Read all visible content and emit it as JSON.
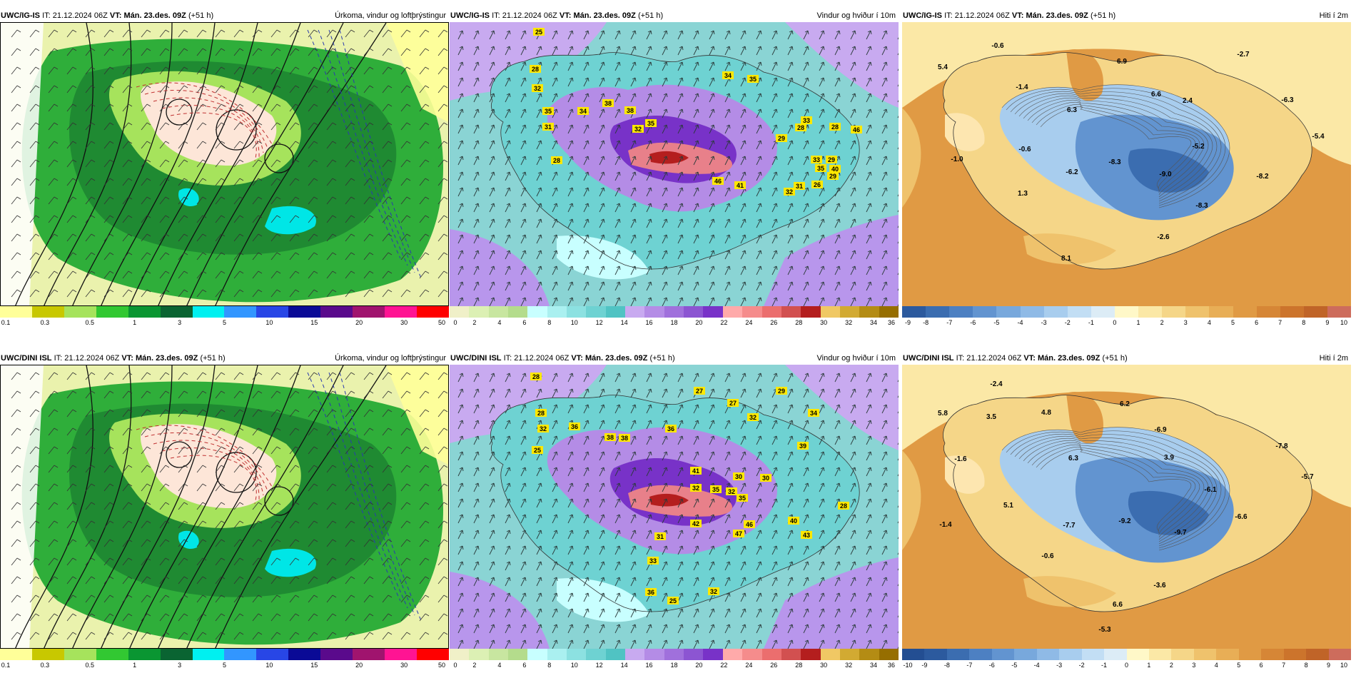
{
  "panels": [
    {
      "model": "UWC/IG-IS",
      "it_label": "IT:",
      "it_value": "21.12.2024 06Z",
      "vt_label": "VT:",
      "vt_value": "Mán. 23.des. 09Z",
      "lead": "(+51 h)",
      "product": "Úrkoma, vindur og loftþrýstingur",
      "kind": "precip",
      "labels": [],
      "colorbar": {
        "colors": [
          "#ffff99",
          "#c8c800",
          "#a6e35c",
          "#32c832",
          "#0a9632",
          "#0a6432",
          "#00f0f0",
          "#3296ff",
          "#2846e6",
          "#0a0a96",
          "#5a0a8c",
          "#a0146e",
          "#ff1493",
          "#ff0000"
        ],
        "ticks": [
          "0.1",
          "0.3",
          "0.5",
          "1",
          "3",
          "5",
          "10",
          "15",
          "20",
          "30",
          "50"
        ]
      }
    },
    {
      "model": "UWC/IG-IS",
      "it_label": "IT:",
      "it_value": "21.12.2024 06Z",
      "vt_label": "VT:",
      "vt_value": "Mán. 23.des. 09Z",
      "lead": "(+51 h)",
      "product": "Vindur og hviður í 10m",
      "kind": "wind",
      "labels": [
        "25",
        "28",
        "32",
        "35",
        "31",
        "28",
        "34",
        "38",
        "38",
        "35",
        "32",
        "34",
        "35",
        "33",
        "28",
        "29",
        "28",
        "33",
        "35",
        "29",
        "40",
        "46",
        "46",
        "41",
        "32",
        "31",
        "26",
        "29"
      ],
      "colorbar": {
        "colors": [
          "#f0f0c8",
          "#dcf0b4",
          "#c8e6a0",
          "#b4dc8c",
          "#c8ffff",
          "#aaf0f0",
          "#8ce1e1",
          "#6ed2d2",
          "#50c3c3",
          "#c8aaf0",
          "#b48ce6",
          "#a070dc",
          "#8c55d2",
          "#7832c8",
          "#ffaaaa",
          "#f58c8c",
          "#eb6e6e",
          "#d25050",
          "#b41e1e",
          "#f0c864",
          "#d2aa32",
          "#b48c14",
          "#966e00"
        ],
        "ticks": [
          "0",
          "2",
          "4",
          "6",
          "8",
          "10",
          "12",
          "14",
          "16",
          "18",
          "20",
          "22",
          "24",
          "26",
          "28",
          "30",
          "32",
          "34",
          "36"
        ]
      }
    },
    {
      "model": "UWC/IG-IS",
      "it_label": "IT:",
      "it_value": "21.12.2024 06Z",
      "vt_label": "VT:",
      "vt_value": "Mán. 23.des. 09Z",
      "lead": "(+51 h)",
      "product": "Hiti í 2m",
      "kind": "temp",
      "labels": [
        "-0.6",
        "5.4",
        "-1.4",
        "6.3",
        "6.9",
        "6.6",
        "2.4",
        "-2.7",
        "-6.3",
        "-5.4",
        "-0.6",
        "-1.0",
        "-6.2",
        "-8.3",
        "-5.2",
        "-9.0",
        "-8.2",
        "1.3",
        "-8.3",
        "-2.6",
        "8.1"
      ],
      "colorbar": {
        "colors": [
          "#2c5a9e",
          "#3b6db0",
          "#4d80c2",
          "#6294d0",
          "#78a8dc",
          "#8fbae6",
          "#a8cdee",
          "#c2def4",
          "#dcecf6",
          "#fff8c8",
          "#fbe8a6",
          "#f5d688",
          "#efc26c",
          "#e8ae56",
          "#e09a44",
          "#d68636",
          "#cc742c",
          "#c06428",
          "#cd6c5c"
        ],
        "ticks": [
          "-9",
          "-8",
          "-7",
          "-6",
          "-5",
          "-4",
          "-3",
          "-2",
          "-1",
          "0",
          "1",
          "2",
          "3",
          "4",
          "5",
          "6",
          "7",
          "8",
          "9",
          "10"
        ]
      }
    },
    {
      "model": "UWC/DINI ISL",
      "it_label": "IT:",
      "it_value": "21.12.2024 06Z",
      "vt_label": "VT:",
      "vt_value": "Mán. 23.des. 09Z",
      "lead": "(+51 h)",
      "product": "Úrkoma, vindur og loftþrýstingur",
      "kind": "precip",
      "labels": [],
      "colorbar": {
        "colors": [
          "#ffff99",
          "#c8c800",
          "#a6e35c",
          "#32c832",
          "#0a9632",
          "#0a6432",
          "#00f0f0",
          "#3296ff",
          "#2846e6",
          "#0a0a96",
          "#5a0a8c",
          "#a0146e",
          "#ff1493",
          "#ff0000"
        ],
        "ticks": [
          "0.1",
          "0.3",
          "0.5",
          "1",
          "3",
          "5",
          "10",
          "15",
          "20",
          "30",
          "50"
        ]
      }
    },
    {
      "model": "UWC/DINI ISL",
      "it_label": "IT:",
      "it_value": "21.12.2024 06Z",
      "vt_label": "VT:",
      "vt_value": "Mán. 23.des. 09Z",
      "lead": "(+51 h)",
      "product": "Vindur og hviður í 10m",
      "kind": "wind",
      "labels": [
        "28",
        "28",
        "32",
        "25",
        "27",
        "27",
        "32",
        "29",
        "34",
        "36",
        "38",
        "38",
        "36",
        "41",
        "32",
        "35",
        "32",
        "30",
        "35",
        "30",
        "39",
        "46",
        "42",
        "47",
        "43",
        "40",
        "25",
        "36",
        "32",
        "33",
        "31",
        "28"
      ],
      "colorbar": {
        "colors": [
          "#f0f0c8",
          "#dcf0b4",
          "#c8e6a0",
          "#b4dc8c",
          "#c8ffff",
          "#aaf0f0",
          "#8ce1e1",
          "#6ed2d2",
          "#50c3c3",
          "#c8aaf0",
          "#b48ce6",
          "#a070dc",
          "#8c55d2",
          "#7832c8",
          "#ffaaaa",
          "#f58c8c",
          "#eb6e6e",
          "#d25050",
          "#b41e1e",
          "#f0c864",
          "#d2aa32",
          "#b48c14",
          "#966e00"
        ],
        "ticks": [
          "0",
          "2",
          "4",
          "6",
          "8",
          "10",
          "12",
          "14",
          "16",
          "18",
          "20",
          "22",
          "24",
          "26",
          "28",
          "30",
          "32",
          "34",
          "36"
        ]
      }
    },
    {
      "model": "UWC/DINI ISL",
      "it_label": "IT:",
      "it_value": "21.12.2024 06Z",
      "vt_label": "VT:",
      "vt_value": "Mán. 23.des. 09Z",
      "lead": "(+51 h)",
      "product": "Hiti í 2m",
      "kind": "temp",
      "labels": [
        "-2.4",
        "5.8",
        "3.5",
        "4.8",
        "6.2",
        "-6.9",
        "-7.8",
        "-1.6",
        "6.3",
        "3.9",
        "-6.1",
        "-5.7",
        "5.1",
        "-7.7",
        "-9.2",
        "-9.7",
        "-6.6",
        "-1.4",
        "-0.6",
        "-3.6",
        "6.6",
        "-5.3"
      ],
      "colorbar": {
        "colors": [
          "#234e92",
          "#2c5a9e",
          "#3b6db0",
          "#4d80c2",
          "#6294d0",
          "#78a8dc",
          "#8fbae6",
          "#a8cdee",
          "#c2def4",
          "#dcecf6",
          "#fff8c8",
          "#fbe8a6",
          "#f5d688",
          "#efc26c",
          "#e8ae56",
          "#e09a44",
          "#d68636",
          "#cc742c",
          "#c06428",
          "#cd6c5c"
        ],
        "ticks": [
          "-10",
          "-9",
          "-8",
          "-7",
          "-6",
          "-5",
          "-4",
          "-3",
          "-2",
          "-1",
          "0",
          "1",
          "2",
          "3",
          "4",
          "5",
          "6",
          "7",
          "8",
          "9",
          "10"
        ]
      }
    }
  ]
}
